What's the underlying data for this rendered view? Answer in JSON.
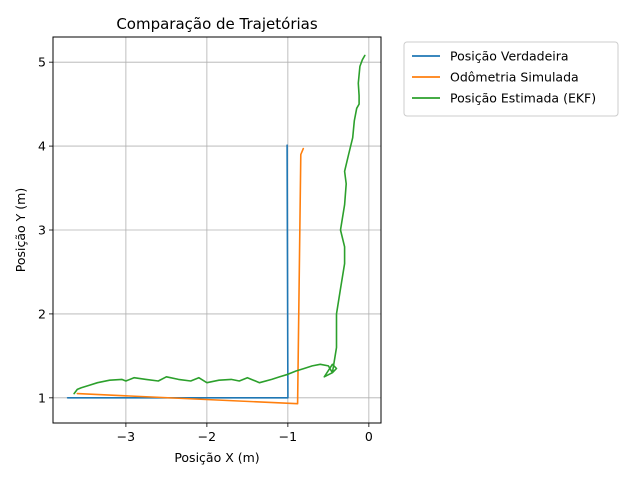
{
  "chart_data": {
    "type": "line",
    "title": "Comparação de Trajetórias",
    "xlabel": "Posição X (m)",
    "ylabel": "Posição Y (m)",
    "xlim": [
      -3.9,
      0.15
    ],
    "ylim": [
      0.7,
      5.3
    ],
    "xticks": [
      -3,
      -2,
      -1,
      0
    ],
    "yticks": [
      1,
      2,
      3,
      4,
      5
    ],
    "xtick_labels": [
      "−3",
      "−2",
      "−1",
      "0"
    ],
    "ytick_labels": [
      "1",
      "2",
      "3",
      "4",
      "5"
    ],
    "grid": true,
    "legend_position": "outside-right",
    "series": [
      {
        "name": "Posição Verdadeira",
        "color": "#1f77b4",
        "x": [
          -3.72,
          -1.0,
          -1.0,
          -1.01
        ],
        "y": [
          1.0,
          1.0,
          1.0,
          4.01
        ]
      },
      {
        "name": "Odômetria Simulada",
        "color": "#ff7f0e",
        "x": [
          -3.6,
          -0.88,
          -0.88,
          -0.84,
          -0.81
        ],
        "y": [
          1.05,
          0.93,
          0.93,
          3.9,
          3.97
        ]
      },
      {
        "name": "Posição Estimada (EKF)",
        "color": "#2ca02c",
        "x": [
          -3.64,
          -3.6,
          -3.55,
          -3.45,
          -3.35,
          -3.2,
          -3.05,
          -3.0,
          -2.9,
          -2.75,
          -2.6,
          -2.5,
          -2.35,
          -2.2,
          -2.1,
          -2.0,
          -1.85,
          -1.7,
          -1.6,
          -1.5,
          -1.35,
          -1.2,
          -1.1,
          -1.0,
          -0.9,
          -0.8,
          -0.7,
          -0.6,
          -0.5,
          -0.45,
          -0.4,
          -0.45,
          -0.55,
          -0.45,
          -0.4,
          -0.4,
          -0.35,
          -0.3,
          -0.3,
          -0.35,
          -0.3,
          -0.28,
          -0.3,
          -0.25,
          -0.2,
          -0.18,
          -0.15,
          -0.12,
          -0.12,
          -0.13,
          -0.12,
          -0.11,
          -0.08,
          -0.05
        ],
        "y": [
          1.05,
          1.1,
          1.12,
          1.15,
          1.18,
          1.21,
          1.22,
          1.2,
          1.24,
          1.22,
          1.2,
          1.25,
          1.22,
          1.2,
          1.24,
          1.18,
          1.21,
          1.22,
          1.2,
          1.24,
          1.18,
          1.22,
          1.25,
          1.28,
          1.32,
          1.35,
          1.38,
          1.4,
          1.38,
          1.3,
          1.35,
          1.4,
          1.25,
          1.3,
          1.6,
          2.0,
          2.3,
          2.6,
          2.8,
          3.0,
          3.3,
          3.55,
          3.7,
          3.9,
          4.1,
          4.3,
          4.45,
          4.5,
          4.6,
          4.75,
          4.85,
          4.95,
          5.03,
          5.08
        ]
      }
    ]
  }
}
